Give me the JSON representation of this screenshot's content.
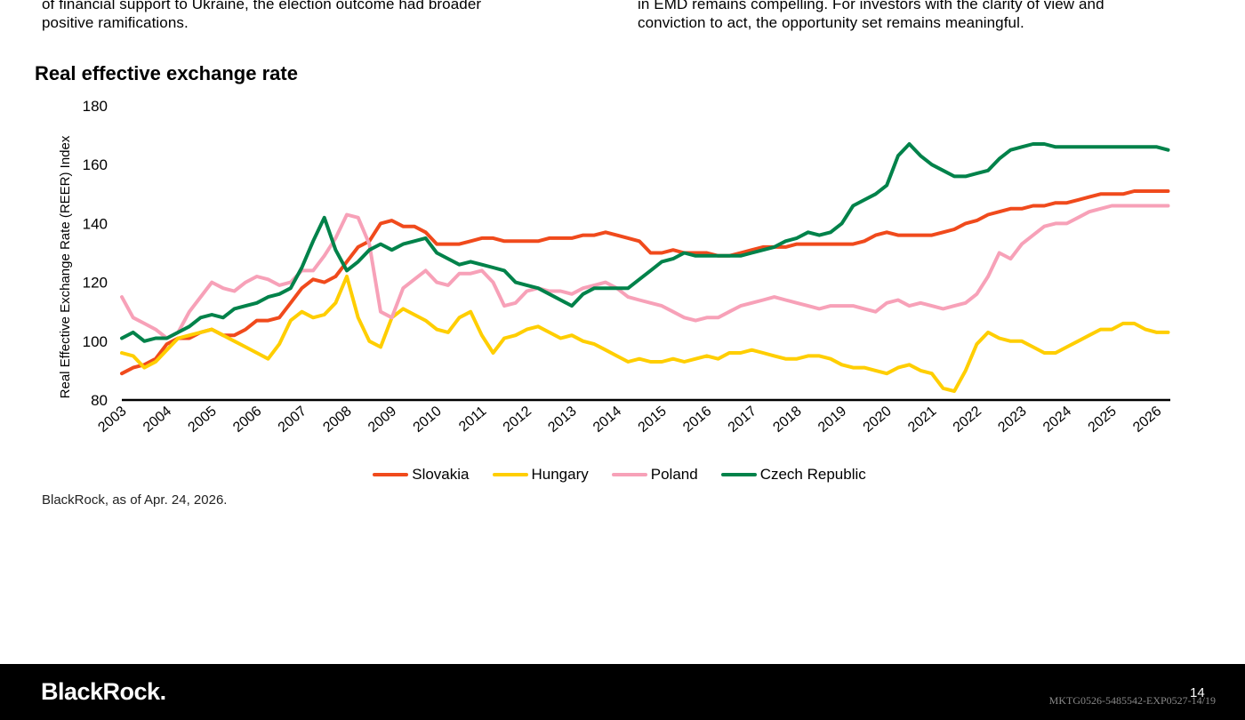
{
  "left_column": {
    "lines": [
      "of financial support to Ukraine, the election outcome had broader",
      "positive ramifications."
    ]
  },
  "right_column": {
    "lines": [
      "in EMD remains compelling. For investors with the clarity of view and",
      "conviction to act, the opportunity set remains meaningful."
    ]
  },
  "chart_title": "Real effective exchange rate",
  "source": "BlackRock, as of Apr. 24, 2026.",
  "footer": {
    "logo": "BlackRock.",
    "page_number": "14",
    "doc_code": "MKTG0526-5485542-EXP0527-14/19"
  },
  "chart_data": {
    "type": "line",
    "title": "Real effective exchange rate",
    "xlabel": "",
    "ylabel": "Real Effective Exchange Rate (REER) Index",
    "ylim": [
      80,
      180
    ],
    "xlim": [
      2003.0,
      2026.3
    ],
    "yticks": [
      80,
      100,
      120,
      140,
      160,
      180
    ],
    "xticks": [
      "2003",
      "2004",
      "2005",
      "2006",
      "2007",
      "2008",
      "2009",
      "2010",
      "2011",
      "2012",
      "2013",
      "2014",
      "2015",
      "2016",
      "2017",
      "2018",
      "2019",
      "2020",
      "2021",
      "2022",
      "2023",
      "2024",
      "2025",
      "2026"
    ],
    "grid": false,
    "legend_position": "bottom",
    "x": [
      2003.0,
      2003.25,
      2003.5,
      2003.75,
      2004.0,
      2004.25,
      2004.5,
      2004.75,
      2005.0,
      2005.25,
      2005.5,
      2005.75,
      2006.0,
      2006.25,
      2006.5,
      2006.75,
      2007.0,
      2007.25,
      2007.5,
      2007.75,
      2008.0,
      2008.25,
      2008.5,
      2008.75,
      2009.0,
      2009.25,
      2009.5,
      2009.75,
      2010.0,
      2010.25,
      2010.5,
      2010.75,
      2011.0,
      2011.25,
      2011.5,
      2011.75,
      2012.0,
      2012.25,
      2012.5,
      2012.75,
      2013.0,
      2013.25,
      2013.5,
      2013.75,
      2014.0,
      2014.25,
      2014.5,
      2014.75,
      2015.0,
      2015.25,
      2015.5,
      2015.75,
      2016.0,
      2016.25,
      2016.5,
      2016.75,
      2017.0,
      2017.25,
      2017.5,
      2017.75,
      2018.0,
      2018.25,
      2018.5,
      2018.75,
      2019.0,
      2019.25,
      2019.5,
      2019.75,
      2020.0,
      2020.25,
      2020.5,
      2020.75,
      2021.0,
      2021.25,
      2021.5,
      2021.75,
      2022.0,
      2022.25,
      2022.5,
      2022.75,
      2023.0,
      2023.25,
      2023.5,
      2023.75,
      2024.0,
      2024.25,
      2024.5,
      2024.75,
      2025.0,
      2025.25,
      2025.5,
      2025.75,
      2026.0,
      2026.25
    ],
    "series": [
      {
        "name": "Slovakia",
        "color": "#f04a1c",
        "values": [
          89,
          91,
          92,
          94,
          99,
          101,
          101,
          103,
          104,
          102,
          102,
          104,
          107,
          107,
          108,
          113,
          118,
          121,
          120,
          122,
          127,
          132,
          134,
          140,
          141,
          139,
          139,
          137,
          133,
          133,
          133,
          134,
          135,
          135,
          134,
          134,
          134,
          134,
          135,
          135,
          135,
          136,
          136,
          137,
          136,
          135,
          134,
          130,
          130,
          131,
          130,
          130,
          130,
          129,
          129,
          130,
          131,
          132,
          132,
          132,
          133,
          133,
          133,
          133,
          133,
          133,
          134,
          136,
          137,
          136,
          136,
          136,
          136,
          137,
          138,
          140,
          141,
          143,
          144,
          145,
          145,
          146,
          146,
          147,
          147,
          148,
          149,
          150,
          150,
          150,
          151,
          151,
          151,
          151
        ]
      },
      {
        "name": "Hungary",
        "color": "#ffce00",
        "values": [
          96,
          95,
          91,
          93,
          97,
          101,
          102,
          103,
          104,
          102,
          100,
          98,
          96,
          94,
          99,
          107,
          110,
          108,
          109,
          113,
          122,
          108,
          100,
          98,
          108,
          111,
          109,
          107,
          104,
          103,
          108,
          110,
          102,
          96,
          101,
          102,
          104,
          105,
          103,
          101,
          102,
          100,
          99,
          97,
          95,
          93,
          94,
          93,
          93,
          94,
          93,
          94,
          95,
          94,
          96,
          96,
          97,
          96,
          95,
          94,
          94,
          95,
          95,
          94,
          92,
          91,
          91,
          90,
          89,
          91,
          92,
          90,
          89,
          84,
          83,
          90,
          99,
          103,
          101,
          100,
          100,
          98,
          96,
          96,
          98,
          100,
          102,
          104,
          104,
          106,
          106,
          104,
          103,
          103
        ]
      },
      {
        "name": "Poland",
        "color": "#f7a1b8",
        "values": [
          115,
          108,
          106,
          104,
          101,
          103,
          110,
          115,
          120,
          118,
          117,
          120,
          122,
          121,
          119,
          120,
          124,
          124,
          129,
          135,
          143,
          142,
          133,
          110,
          108,
          118,
          121,
          124,
          120,
          119,
          123,
          123,
          124,
          120,
          112,
          113,
          117,
          118,
          117,
          117,
          116,
          118,
          119,
          120,
          118,
          115,
          114,
          113,
          112,
          110,
          108,
          107,
          108,
          108,
          110,
          112,
          113,
          114,
          115,
          114,
          113,
          112,
          111,
          112,
          112,
          112,
          111,
          110,
          113,
          114,
          112,
          113,
          112,
          111,
          112,
          113,
          116,
          122,
          130,
          128,
          133,
          136,
          139,
          140,
          140,
          142,
          144,
          145,
          146,
          146,
          146,
          146,
          146,
          146
        ]
      },
      {
        "name": "Czech Republic",
        "color": "#00824a",
        "values": [
          101,
          103,
          100,
          101,
          101,
          103,
          105,
          108,
          109,
          108,
          111,
          112,
          113,
          115,
          116,
          118,
          125,
          134,
          142,
          131,
          124,
          127,
          131,
          133,
          131,
          133,
          134,
          135,
          130,
          128,
          126,
          127,
          126,
          125,
          124,
          120,
          119,
          118,
          116,
          114,
          112,
          116,
          118,
          118,
          118,
          118,
          121,
          124,
          127,
          128,
          130,
          129,
          129,
          129,
          129,
          129,
          130,
          131,
          132,
          134,
          135,
          137,
          136,
          137,
          140,
          146,
          148,
          150,
          153,
          163,
          167,
          163,
          160,
          158,
          156,
          156,
          157,
          158,
          162,
          165,
          166,
          167,
          167,
          166,
          166,
          166,
          166,
          166,
          166,
          166,
          166,
          166,
          166,
          165
        ]
      }
    ]
  }
}
